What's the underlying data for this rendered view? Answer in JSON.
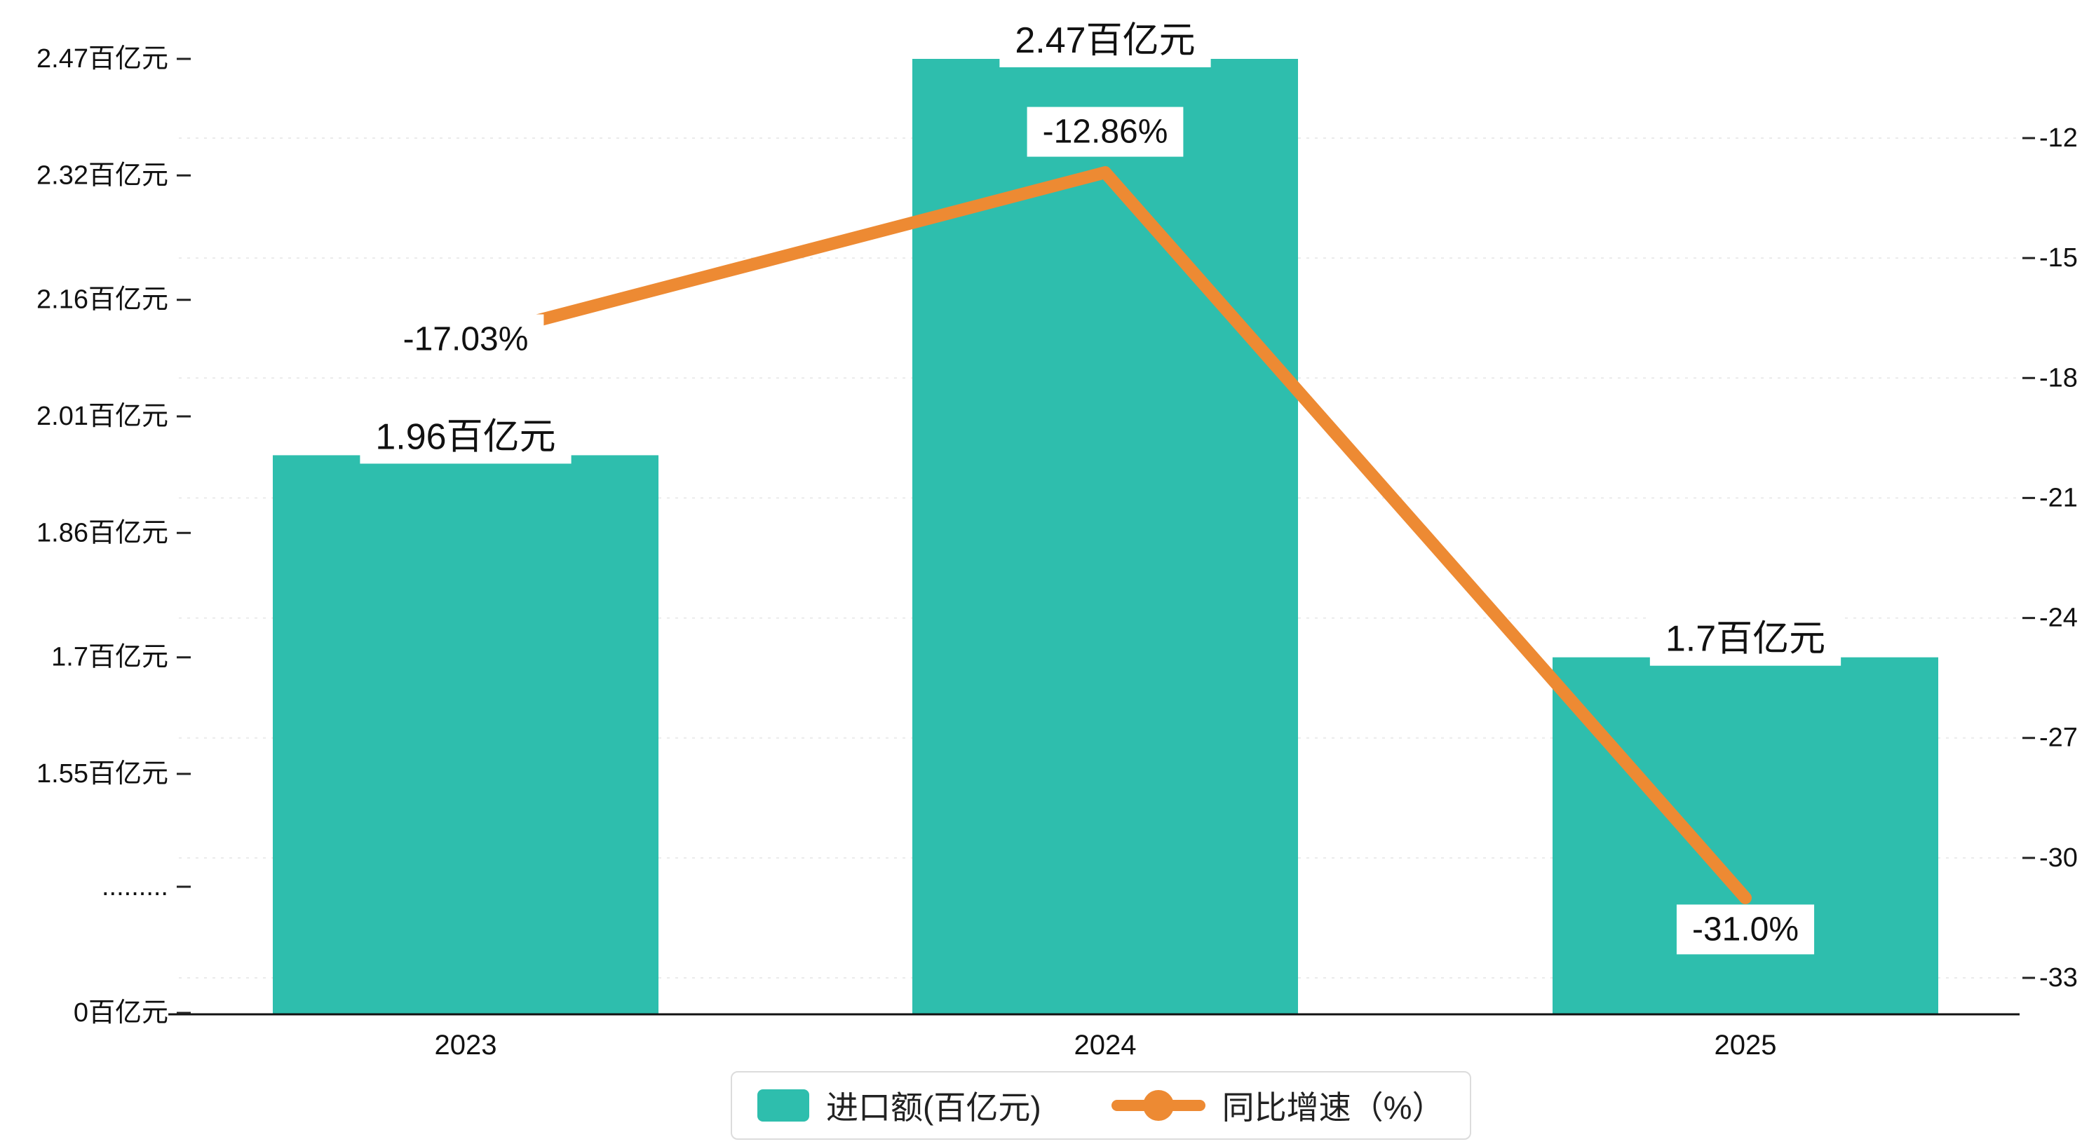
{
  "chart_data": {
    "type": "bar",
    "categories": [
      "2023",
      "2024",
      "2025"
    ],
    "series": [
      {
        "name": "进口额(百亿元)",
        "type": "bar",
        "axis": "left",
        "values": [
          1.96,
          2.47,
          1.7
        ],
        "labels": [
          "1.96百亿元",
          "2.47百亿元",
          "1.7百亿元"
        ],
        "color": "#2EBEAD"
      },
      {
        "name": "同比增速（%）",
        "type": "line",
        "axis": "right",
        "values": [
          -17.03,
          -12.86,
          -31.0
        ],
        "labels": [
          "-17.03%",
          "-12.86%",
          "-31.0%"
        ],
        "color": "#ED8A33"
      }
    ],
    "left_axis": {
      "min": 0,
      "break_at": 1.55,
      "max": 2.47,
      "tick_values": [
        2.47,
        2.32,
        2.16,
        2.01,
        1.86,
        1.7,
        1.55
      ],
      "tick_labels": [
        "2.47百亿元",
        "2.32百亿元",
        "2.16百亿元",
        "2.01百亿元",
        "1.86百亿元",
        "1.7百亿元",
        "1.55百亿元"
      ],
      "break_label": ".........",
      "zero_label": "0百亿元"
    },
    "right_axis": {
      "min": -33,
      "max": -12,
      "ticks": [
        -12,
        -15,
        -18,
        -21,
        -24,
        -27,
        -30,
        -33
      ]
    },
    "grid": "dashed-horizontal",
    "legend_position": "bottom-center",
    "title": "",
    "xlabel": "",
    "ylabel_left": "百亿元",
    "ylabel_right": "%"
  }
}
